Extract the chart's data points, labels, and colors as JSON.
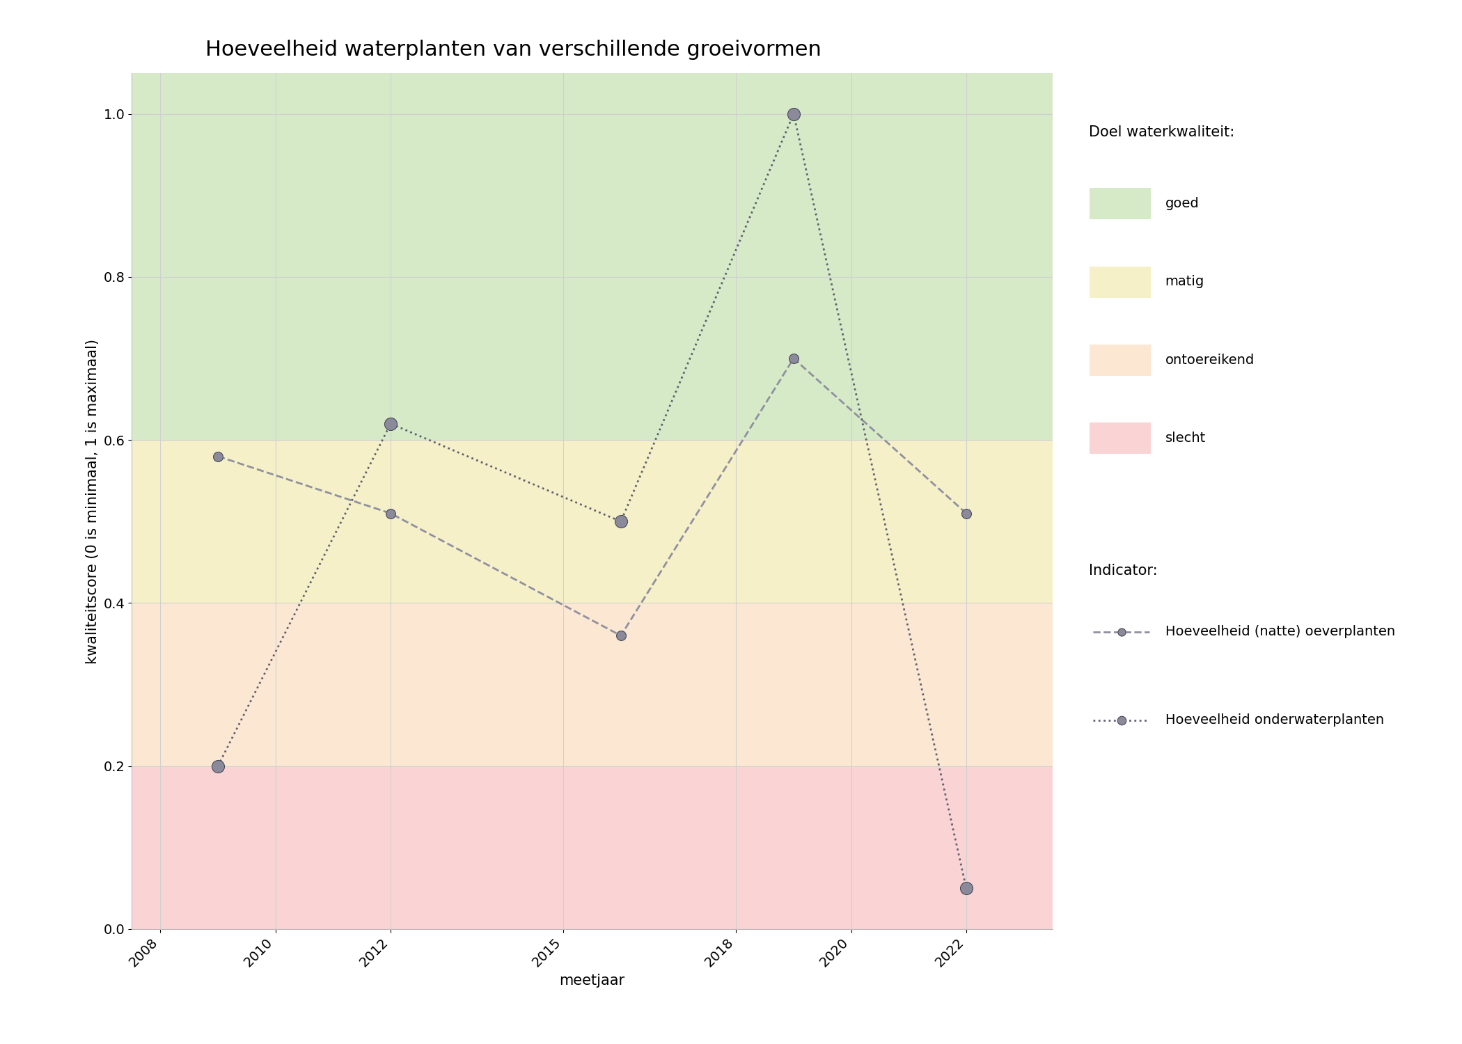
{
  "title": "Hoeveelheid waterplanten van verschillende groeivormen",
  "xlabel": "meetjaar",
  "ylabel": "kwaliteitscore (0 is minimaal, 1 is maximaal)",
  "background_color": "#ffffff",
  "bg_colors": {
    "goed": "#d6eac8",
    "matig": "#f5f0c8",
    "ontoereikend": "#fce8d2",
    "slecht": "#fad4d4"
  },
  "series": {
    "oeverplanten": {
      "label": "Hoeveelheid (natte) oeverplanten",
      "x": [
        2009,
        2012,
        2016,
        2019,
        2022
      ],
      "y": [
        0.58,
        0.51,
        0.36,
        0.7,
        0.51
      ],
      "linestyle": "--",
      "color": "#9090a0",
      "marker": "o",
      "markersize": 10,
      "linewidth": 2.0
    },
    "onderwaterplanten": {
      "label": "Hoeveelheid onderwaterplanten",
      "x": [
        2009,
        2012,
        2016,
        2019,
        2022
      ],
      "y": [
        0.2,
        0.62,
        0.5,
        1.0,
        0.05
      ],
      "linestyle": ":",
      "color": "#606070",
      "marker": "o",
      "markersize": 13,
      "linewidth": 2.0
    }
  },
  "xlim": [
    2007.5,
    2023.5
  ],
  "ylim": [
    0.0,
    1.05
  ],
  "xticks": [
    2008,
    2010,
    2012,
    2015,
    2018,
    2020,
    2022
  ],
  "yticks": [
    0.0,
    0.2,
    0.4,
    0.6,
    0.8,
    1.0
  ],
  "legend_items_doel": [
    "goed",
    "matig",
    "ontoereikend",
    "slecht"
  ],
  "legend_colors_doel": [
    "#d6eac8",
    "#f5f0c8",
    "#fce8d2",
    "#fad4d4"
  ],
  "grid_color": "#d0d0d0",
  "title_fontsize": 22,
  "label_fontsize": 15,
  "tick_fontsize": 14,
  "legend_fontsize": 14
}
